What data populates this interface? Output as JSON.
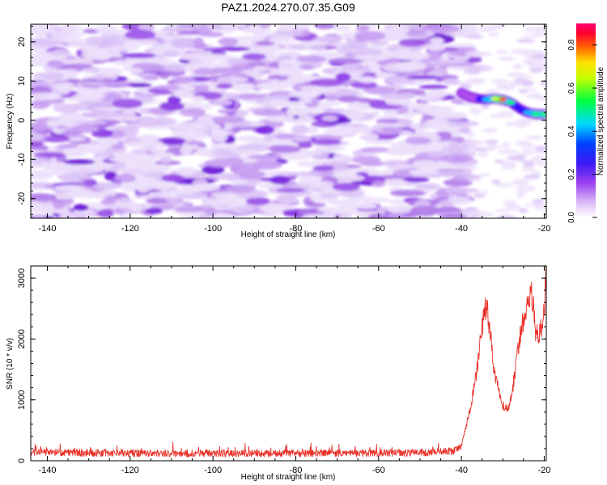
{
  "figure": {
    "title": "PAZ1.2024.270.07.35.G09"
  },
  "colors": {
    "snr_line": "#e8322a",
    "axis": "#000000",
    "spectrum_low": "#e8d6f8",
    "spectrum_mid": "#9b4fe6",
    "spectrum_high": "#6a11d6"
  },
  "chart_data": [
    {
      "type": "heatmap",
      "title": "PAZ1.2024.270.07.35.G09",
      "xlabel": "Height of straight line (km)",
      "ylabel": "Frequency (Hz)",
      "xlim": [
        -144,
        -19.5
      ],
      "ylim": [
        -25,
        24.5
      ],
      "x_ticks": [
        -140,
        -120,
        -100,
        -80,
        -60,
        -40,
        -20
      ],
      "y_ticks": [
        -20,
        -10,
        0,
        10,
        20
      ],
      "colorbar": {
        "label": "Normalized spectral amplitude",
        "range": [
          0.0,
          0.9
        ],
        "ticks": [
          0.0,
          0.2,
          0.4,
          0.6,
          0.8
        ],
        "colormap": [
          "#ffffff",
          "#b04df0",
          "#0000ff",
          "#00ffff",
          "#00ff00",
          "#ffff00",
          "#ff0000",
          "#ff0066"
        ]
      },
      "ridge": [
        {
          "x": -40,
          "y": 7.0,
          "v": 0.2
        },
        {
          "x": -38,
          "y": 6.0,
          "v": 0.3
        },
        {
          "x": -36,
          "y": 5.5,
          "v": 0.35
        },
        {
          "x": -34,
          "y": 5.3,
          "v": 0.45
        },
        {
          "x": -32,
          "y": 5.5,
          "v": 0.7
        },
        {
          "x": -30,
          "y": 5.3,
          "v": 0.85
        },
        {
          "x": -28,
          "y": 4.5,
          "v": 0.5
        },
        {
          "x": -26,
          "y": 3.0,
          "v": 0.4
        },
        {
          "x": -24,
          "y": 2.0,
          "v": 0.45
        },
        {
          "x": -22,
          "y": 1.6,
          "v": 0.55
        },
        {
          "x": -20,
          "y": 1.5,
          "v": 0.6
        }
      ]
    },
    {
      "type": "line",
      "xlabel": "Height of straight line (km)",
      "ylabel": "SNR (10 * v/v)",
      "xlim": [
        -144,
        -19.5
      ],
      "ylim": [
        0,
        3200
      ],
      "x_ticks": [
        -140,
        -120,
        -100,
        -80,
        -60,
        -40,
        -20
      ],
      "y_ticks": [
        0,
        1000,
        2000,
        3000
      ],
      "envelope": {
        "x": [
          -144,
          -130,
          -110,
          -90,
          -70,
          -50,
          -42,
          -40,
          -38,
          -36,
          -35,
          -34,
          -33,
          -32,
          -31,
          -30,
          -29,
          -28,
          -27,
          -26,
          -25,
          -24,
          -23,
          -22,
          -21,
          -20,
          -19.5
        ],
        "y": [
          140,
          130,
          120,
          120,
          120,
          130,
          160,
          250,
          800,
          1600,
          2200,
          2550,
          2100,
          1400,
          1200,
          900,
          850,
          1000,
          1500,
          2000,
          2300,
          2600,
          2750,
          2100,
          2100,
          2400,
          3200
        ]
      }
    }
  ]
}
